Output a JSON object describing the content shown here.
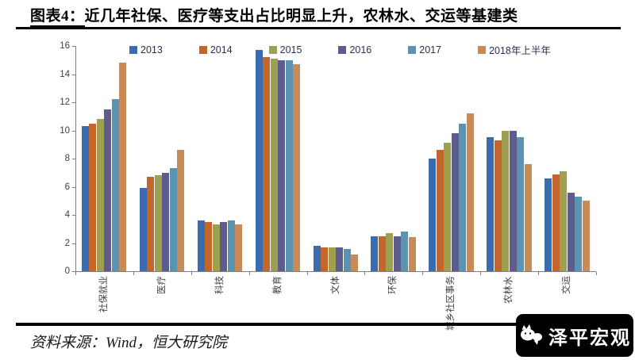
{
  "title": {
    "prefix": "图表4：",
    "text": "近几年社保、医疗等支出占比明显上升，农林水、交运等基建类"
  },
  "source": "资料来源：Wind，恒大研究院",
  "logo": {
    "text": "泽平宏观",
    "icon": "chat-bubbles-icon"
  },
  "colors": {
    "title_rule": "#000000",
    "axis": "#7f7f7f",
    "tick_label": "#404040",
    "logo_bg": "#000000",
    "logo_fg": "#ffffff"
  },
  "chart_data": {
    "type": "bar",
    "title": "图表4：近几年社保、医疗等支出占比明显上升，农林水、交运等基建类",
    "xlabel": "",
    "ylabel": "",
    "ylim": [
      0,
      16
    ],
    "ytick_step": 2,
    "grid": false,
    "legend_position": "top",
    "categories": [
      "社保就业",
      "医疗",
      "科技",
      "教育",
      "文体",
      "环保",
      "城乡社区事务",
      "农林水",
      "交运"
    ],
    "series": [
      {
        "name": "2013",
        "color": "#3c6cb0",
        "values": [
          10.3,
          5.9,
          3.6,
          15.7,
          1.8,
          2.5,
          8.0,
          9.5,
          6.6
        ]
      },
      {
        "name": "2014",
        "color": "#c4662c",
        "values": [
          10.5,
          6.7,
          3.5,
          15.2,
          1.7,
          2.5,
          8.6,
          9.3,
          6.9
        ]
      },
      {
        "name": "2015",
        "color": "#9ca050",
        "values": [
          10.8,
          6.8,
          3.3,
          15.1,
          1.7,
          2.7,
          9.1,
          10.0,
          7.1
        ]
      },
      {
        "name": "2016",
        "color": "#5d5c8c",
        "values": [
          11.5,
          7.0,
          3.5,
          15.0,
          1.7,
          2.5,
          9.8,
          10.0,
          5.6
        ]
      },
      {
        "name": "2017",
        "color": "#5b93b2",
        "values": [
          12.2,
          7.3,
          3.6,
          15.0,
          1.6,
          2.8,
          10.5,
          9.5,
          5.3
        ]
      },
      {
        "name": "2018年上半年",
        "color": "#c68b59",
        "values": [
          14.8,
          8.6,
          3.3,
          14.7,
          1.2,
          2.4,
          11.2,
          7.6,
          5.0
        ]
      }
    ]
  }
}
